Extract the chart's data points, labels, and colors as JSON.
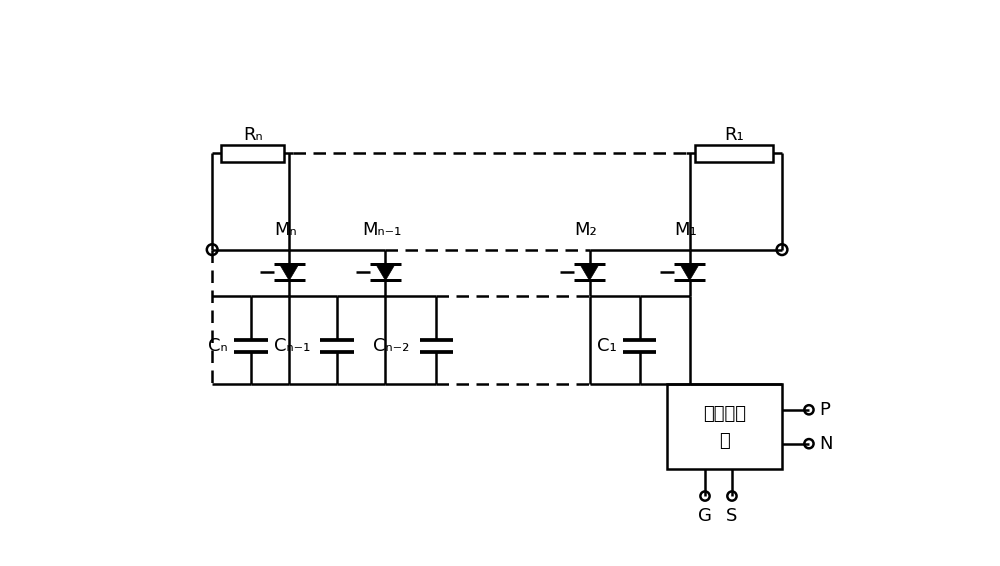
{
  "background": "#ffffff",
  "line_color": "#000000",
  "figsize": [
    10.0,
    5.66
  ],
  "dpi": 100,
  "labels": {
    "Rn": "Rₙ",
    "R1": "R₁",
    "Mn": "Mₙ",
    "Mn1": "Mₙ₋₁",
    "M2": "M₂",
    "M1": "M₁",
    "Cn": "Cₙ",
    "Cn1": "Cₙ₋₁",
    "Cn2": "Cₙ₋₂",
    "C1": "C₁",
    "gate_line1": "门极驱动",
    "gate_line2": "器",
    "P": "P",
    "N": "N",
    "G": "G",
    "S": "S"
  },
  "lw": 1.8,
  "font_size": 13
}
